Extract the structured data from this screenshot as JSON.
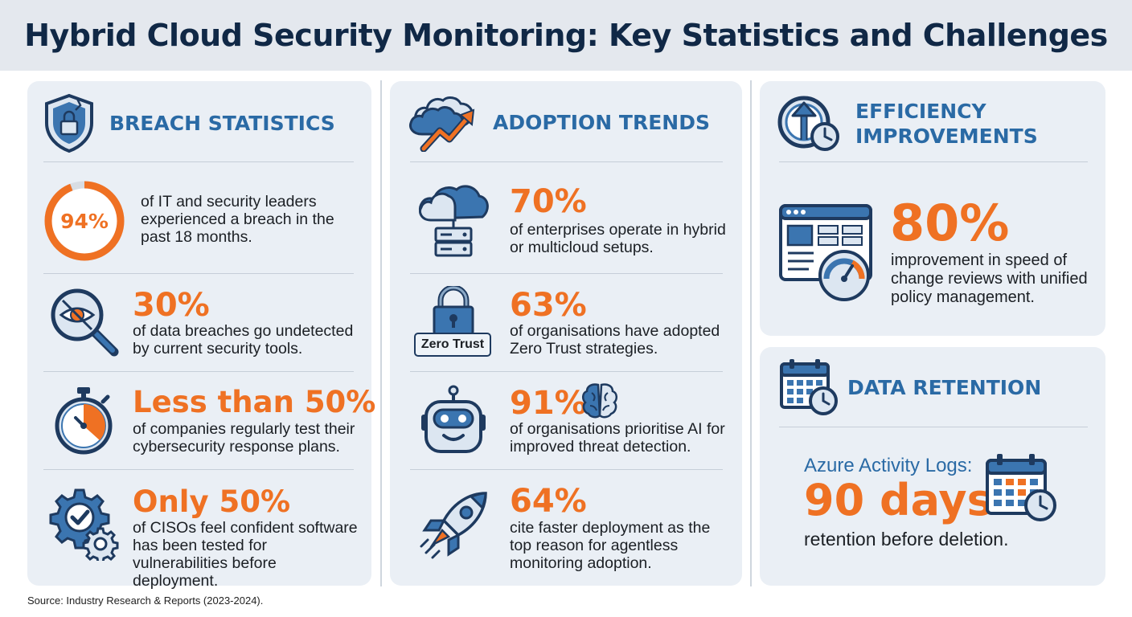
{
  "title": "Hybrid Cloud Security Monitoring: Key Statistics and Challenges",
  "colors": {
    "accent": "#ef7123",
    "heading_blue": "#2a6aa5",
    "navy": "#102846",
    "panel_bg": "#eaeff5"
  },
  "breach": {
    "title": "BREACH STATISTICS",
    "icon": "shield-lock-icon",
    "items": [
      {
        "stat": "94%",
        "gauge_fraction": 0.94,
        "desc": "of IT and security leaders experienced a breach in the past 18 months.",
        "icon": "progress-ring"
      },
      {
        "stat": "30%",
        "desc": "of data breaches go undetected by current security tools.",
        "icon": "magnifier-eye-icon"
      },
      {
        "stat": "Less than 50%",
        "desc": "of companies regularly test their cybersecurity response plans.",
        "icon": "stopwatch-icon"
      },
      {
        "stat": "Only 50%",
        "desc": "of CISOs feel confident software has been tested for vulnerabilities before deployment.",
        "icon": "gears-check-icon"
      }
    ]
  },
  "adoption": {
    "title": "ADOPTION TRENDS",
    "icon": "cloud-trend-icon",
    "items": [
      {
        "stat": "70%",
        "desc": "of enterprises operate in hybrid or multicloud setups.",
        "icon": "cloud-server-icon"
      },
      {
        "stat": "63%",
        "desc": "of organisations have adopted Zero Trust strategies.",
        "icon": "padlock-icon",
        "badge": "Zero Trust"
      },
      {
        "stat": "91%",
        "desc": "of organisations prioritise AI for improved threat detection.",
        "icon": "robot-icon"
      },
      {
        "stat": "64%",
        "desc": "cite faster deployment as the top reason for agentless monitoring adoption.",
        "icon": "rocket-icon"
      }
    ]
  },
  "efficiency": {
    "title_line1": "EFFICIENCY",
    "title_line2": "IMPROVEMENTS",
    "icon": "clock-arrow-icon",
    "stat": "80%",
    "desc": "improvement in speed of change reviews with unified policy management.",
    "item_icon": "dashboard-gauge-icon"
  },
  "retention": {
    "title": "DATA RETENTION",
    "icon": "calendar-clock-icon",
    "label": "Azure Activity Logs:",
    "stat": "90 days",
    "desc": "retention before deletion."
  },
  "source": "Source: Industry Research & Reports (2023-2024)."
}
